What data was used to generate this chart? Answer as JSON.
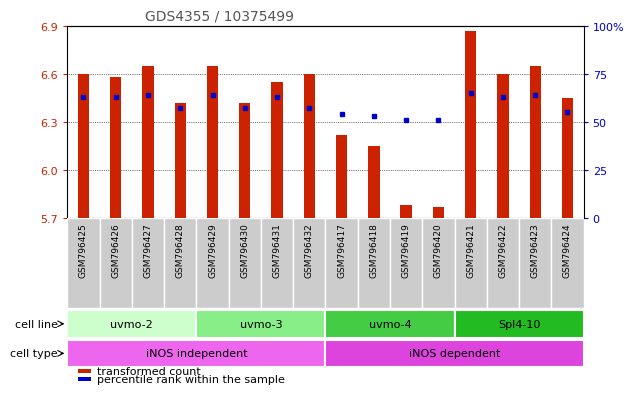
{
  "title": "GDS4355 / 10375499",
  "samples": [
    "GSM796425",
    "GSM796426",
    "GSM796427",
    "GSM796428",
    "GSM796429",
    "GSM796430",
    "GSM796431",
    "GSM796432",
    "GSM796417",
    "GSM796418",
    "GSM796419",
    "GSM796420",
    "GSM796421",
    "GSM796422",
    "GSM796423",
    "GSM796424"
  ],
  "transformed_count": [
    6.6,
    6.58,
    6.65,
    6.42,
    6.65,
    6.42,
    6.55,
    6.6,
    6.22,
    6.15,
    5.78,
    5.77,
    6.87,
    6.6,
    6.65,
    6.45
  ],
  "percentile_rank": [
    63,
    63,
    64,
    57,
    64,
    57,
    63,
    57,
    54,
    53,
    51,
    51,
    65,
    63,
    64,
    55
  ],
  "y_min": 5.7,
  "y_max": 6.9,
  "y_ticks": [
    5.7,
    6.0,
    6.3,
    6.6,
    6.9
  ],
  "right_y_ticks": [
    0,
    25,
    50,
    75,
    100
  ],
  "cell_line_groups": [
    {
      "label": "uvmo-2",
      "start": 0,
      "end": 4,
      "color": "#ccffcc"
    },
    {
      "label": "uvmo-3",
      "start": 4,
      "end": 8,
      "color": "#88ee88"
    },
    {
      "label": "uvmo-4",
      "start": 8,
      "end": 12,
      "color": "#44cc44"
    },
    {
      "label": "Spl4-10",
      "start": 12,
      "end": 16,
      "color": "#22bb22"
    }
  ],
  "cell_type_groups": [
    {
      "label": "iNOS independent",
      "start": 0,
      "end": 8,
      "color": "#ee66ee"
    },
    {
      "label": "iNOS dependent",
      "start": 8,
      "end": 16,
      "color": "#dd44dd"
    }
  ],
  "bar_color": "#cc2200",
  "dot_color": "#0000cc",
  "title_color": "#555555",
  "left_tick_color": "#cc2200",
  "right_tick_color": "#0000cc",
  "legend_items": [
    {
      "color": "#cc2200",
      "label": "transformed count"
    },
    {
      "color": "#0000cc",
      "label": "percentile rank within the sample"
    }
  ]
}
